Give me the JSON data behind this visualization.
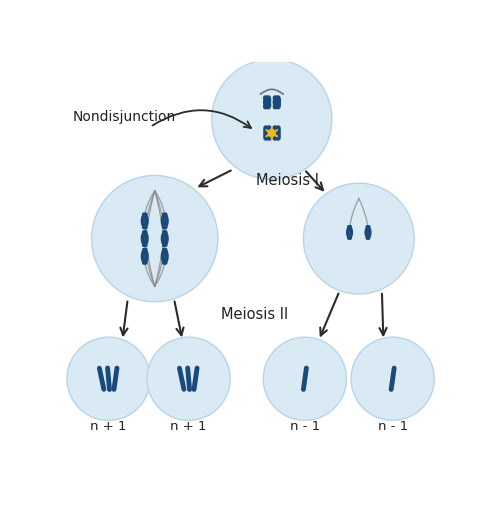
{
  "bg_color": "#ffffff",
  "cell_color": "#daeaf5",
  "cell_edge_color": "#b8d4e8",
  "chr_color": "#1a4a7a",
  "arrow_color": "#2a2a2a",
  "label_color": "#222222",
  "nondisjunction_label": "Nondisjunction",
  "meiosis1_label": "Meiosis I",
  "meiosis2_label": "Meiosis II",
  "bottom_labels": [
    "n + 1",
    "n + 1",
    "n - 1",
    "n - 1"
  ],
  "spark_color": "#f0b820",
  "spindle_color": "#888888"
}
